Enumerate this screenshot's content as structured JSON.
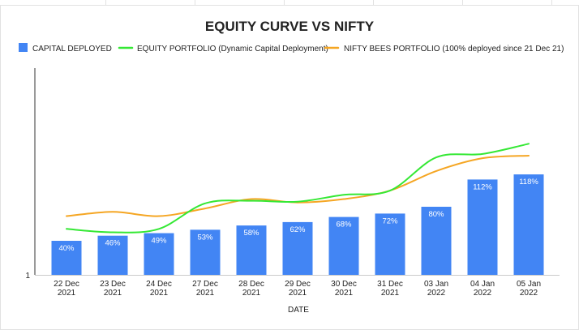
{
  "chart_data": {
    "type": "bar",
    "title": "EQUITY CURVE VS NIFTY",
    "xlabel": "DATE",
    "ylabel": "",
    "legend_position": "top",
    "grid": false,
    "ylim": [
      0,
      200
    ],
    "y_ticks": [
      "1"
    ],
    "categories": [
      [
        "22 Dec",
        "2021"
      ],
      [
        "23 Dec",
        "2021"
      ],
      [
        "24 Dec",
        "2021"
      ],
      [
        "27 Dec",
        "2021"
      ],
      [
        "28 Dec",
        "2021"
      ],
      [
        "29 Dec",
        "2021"
      ],
      [
        "30 Dec",
        "2021"
      ],
      [
        "31 Dec",
        "2021"
      ],
      [
        "03 Jan",
        "2022"
      ],
      [
        "04 Jan",
        "2022"
      ],
      [
        "05 Jan",
        "2022"
      ]
    ],
    "series": [
      {
        "name": "CAPITAL DEPLOYED",
        "kind": "bar",
        "color": "#4285f4",
        "values": [
          40,
          46,
          49,
          53,
          58,
          62,
          68,
          72,
          80,
          112,
          118
        ],
        "labels": [
          "40%",
          "46%",
          "49%",
          "53%",
          "58%",
          "62%",
          "68%",
          "72%",
          "80%",
          "112%",
          "118%"
        ]
      },
      {
        "name": "EQUITY PORTFOLIO (Dynamic Capital Deployment)",
        "kind": "line",
        "color": "#34e834",
        "values": [
          54,
          50,
          54,
          84,
          87,
          86,
          94,
          99,
          138,
          142,
          154
        ]
      },
      {
        "name": "NIFTY BEES PORTFOLIO (100% deployed since 21 Dec 21)",
        "kind": "line",
        "color": "#f5a623",
        "values": [
          69,
          74,
          69,
          78,
          89,
          85,
          89,
          99,
          122,
          137,
          140
        ]
      }
    ]
  }
}
